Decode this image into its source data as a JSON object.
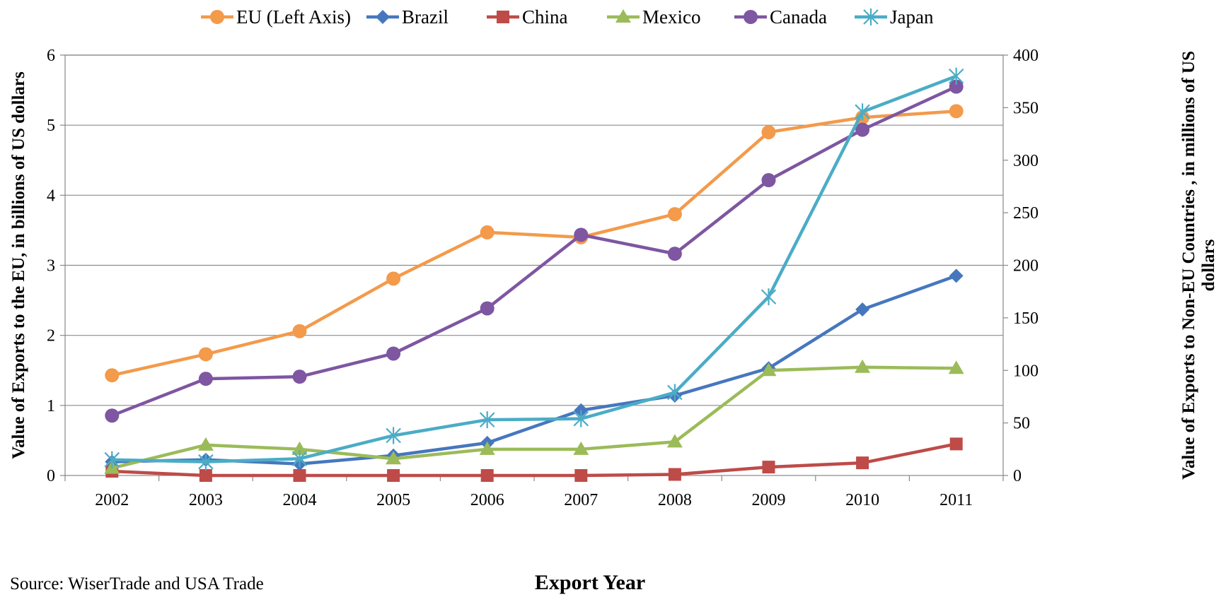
{
  "chart_data": {
    "type": "line",
    "title": "",
    "xlabel": "Export Year",
    "ylabel_left": "Value of Exports  to the EU, in billions of US dollars",
    "ylabel_right_line1": "Value of Exports  to Non-EU  Countries , in millions of US",
    "ylabel_right_line2": "dollars",
    "source": "Source: WiserTrade and USA Trade",
    "categories": [
      "2002",
      "2003",
      "2004",
      "2005",
      "2006",
      "2007",
      "2008",
      "2009",
      "2010",
      "2011"
    ],
    "y_left_ticks": [
      "0",
      "1",
      "2",
      "3",
      "4",
      "5",
      "6"
    ],
    "y_right_ticks": [
      "0",
      "50",
      "100",
      "150",
      "200",
      "250",
      "300",
      "350",
      "400"
    ],
    "ylim_left": [
      0,
      6
    ],
    "ylim_right": [
      0,
      400
    ],
    "grid": true,
    "legend_position": "top",
    "series": [
      {
        "name": "EU (Left Axis)",
        "axis": "left",
        "color": "#F39A4B",
        "marker": "circle",
        "values": [
          1.43,
          1.73,
          2.06,
          2.81,
          3.47,
          3.4,
          3.73,
          4.9,
          5.11,
          5.2
        ]
      },
      {
        "name": "Brazil",
        "axis": "right",
        "color": "#4677BE",
        "marker": "diamond",
        "values": [
          13,
          15,
          11,
          19,
          31,
          62,
          76,
          102,
          158,
          190
        ]
      },
      {
        "name": "China",
        "axis": "right",
        "color": "#BE4B48",
        "marker": "square",
        "values": [
          4,
          0,
          0,
          0,
          0,
          0,
          1,
          8,
          12,
          30
        ]
      },
      {
        "name": "Mexico",
        "axis": "right",
        "color": "#9BBB59",
        "marker": "triangle",
        "values": [
          7,
          29,
          25,
          16,
          25,
          25,
          32,
          100,
          103,
          102
        ]
      },
      {
        "name": "Canada",
        "axis": "right",
        "color": "#7E56A1",
        "marker": "circle",
        "values": [
          57,
          92,
          94,
          116,
          159,
          229,
          211,
          281,
          329,
          370
        ]
      },
      {
        "name": "Japan",
        "axis": "right",
        "color": "#4BACC6",
        "marker": "star",
        "values": [
          15,
          13,
          16,
          38,
          53,
          54,
          79,
          170,
          346,
          380
        ]
      }
    ]
  }
}
